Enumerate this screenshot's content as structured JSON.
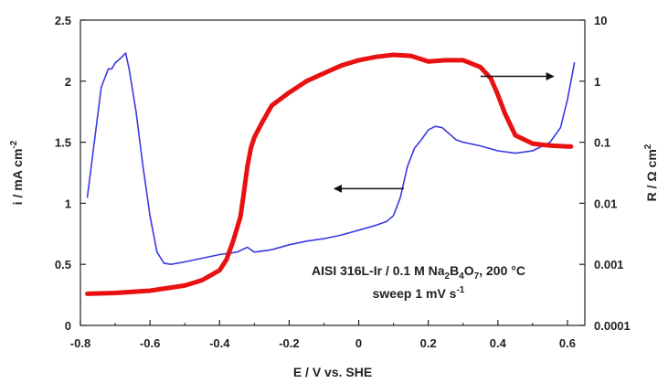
{
  "chart_data": {
    "type": "line",
    "xlabel": "E / V vs. SHE",
    "ylabel_left_parts": [
      "i / mA cm",
      "-2"
    ],
    "ylabel_right_parts": [
      "R / Ω cm",
      "2"
    ],
    "xlim": [
      -0.8,
      0.65
    ],
    "ylim_left": [
      0,
      2.5
    ],
    "ylim_right": [
      0.0001,
      10
    ],
    "right_axis_scale": "log",
    "x_ticks": [
      -0.8,
      -0.6,
      -0.4,
      -0.2,
      0,
      0.2,
      0.4,
      0.6
    ],
    "x_tick_labels": [
      "-0.8",
      "-0.6",
      "-0.4",
      "-0.2",
      "0",
      "0.2",
      "0.4",
      "0.6"
    ],
    "y_left_ticks": [
      0,
      0.5,
      1,
      1.5,
      2,
      2.5
    ],
    "y_left_tick_labels": [
      "0",
      "0.5",
      "1",
      "1.5",
      "2",
      "2.5"
    ],
    "y_right_ticks": [
      0.0001,
      0.001,
      0.01,
      0.1,
      1,
      10
    ],
    "y_right_tick_labels": [
      "0.0001",
      "0.001",
      "0.01",
      "0.1",
      "1",
      "10"
    ],
    "annotation_line1": [
      "AISI 316L-Ir / 0.1 M Na",
      "2",
      "B",
      "4",
      "O",
      "7",
      ", 200 °C"
    ],
    "annotation_line2": [
      "sweep 1 mV s",
      "-1"
    ],
    "series": [
      {
        "axis": "left",
        "color": "#3a3ae0",
        "points": [
          [
            -0.78,
            1.05
          ],
          [
            -0.76,
            1.5
          ],
          [
            -0.74,
            1.95
          ],
          [
            -0.72,
            2.1
          ],
          [
            -0.71,
            2.1
          ],
          [
            -0.7,
            2.15
          ],
          [
            -0.68,
            2.2
          ],
          [
            -0.67,
            2.23
          ],
          [
            -0.66,
            2.1
          ],
          [
            -0.64,
            1.75
          ],
          [
            -0.62,
            1.3
          ],
          [
            -0.6,
            0.9
          ],
          [
            -0.58,
            0.6
          ],
          [
            -0.56,
            0.51
          ],
          [
            -0.54,
            0.5
          ],
          [
            -0.5,
            0.52
          ],
          [
            -0.45,
            0.55
          ],
          [
            -0.4,
            0.58
          ],
          [
            -0.35,
            0.6
          ],
          [
            -0.32,
            0.64
          ],
          [
            -0.3,
            0.6
          ],
          [
            -0.25,
            0.62
          ],
          [
            -0.2,
            0.66
          ],
          [
            -0.15,
            0.69
          ],
          [
            -0.1,
            0.71
          ],
          [
            -0.05,
            0.74
          ],
          [
            0.0,
            0.78
          ],
          [
            0.05,
            0.82
          ],
          [
            0.08,
            0.85
          ],
          [
            0.1,
            0.9
          ],
          [
            0.12,
            1.05
          ],
          [
            0.14,
            1.3
          ],
          [
            0.16,
            1.45
          ],
          [
            0.18,
            1.52
          ],
          [
            0.2,
            1.6
          ],
          [
            0.22,
            1.63
          ],
          [
            0.24,
            1.62
          ],
          [
            0.26,
            1.57
          ],
          [
            0.28,
            1.52
          ],
          [
            0.3,
            1.5
          ],
          [
            0.35,
            1.47
          ],
          [
            0.4,
            1.43
          ],
          [
            0.45,
            1.41
          ],
          [
            0.5,
            1.43
          ],
          [
            0.55,
            1.5
          ],
          [
            0.58,
            1.62
          ],
          [
            0.6,
            1.85
          ],
          [
            0.61,
            2.0
          ],
          [
            0.62,
            2.15
          ]
        ]
      },
      {
        "axis": "right",
        "color": "#e81010",
        "points": [
          [
            -0.78,
            0.00033
          ],
          [
            -0.7,
            0.00034
          ],
          [
            -0.6,
            0.00037
          ],
          [
            -0.5,
            0.00045
          ],
          [
            -0.45,
            0.00055
          ],
          [
            -0.4,
            0.0008
          ],
          [
            -0.38,
            0.0012
          ],
          [
            -0.36,
            0.0025
          ],
          [
            -0.34,
            0.006
          ],
          [
            -0.33,
            0.015
          ],
          [
            -0.32,
            0.04
          ],
          [
            -0.31,
            0.08
          ],
          [
            -0.3,
            0.12
          ],
          [
            -0.28,
            0.2
          ],
          [
            -0.25,
            0.4
          ],
          [
            -0.2,
            0.65
          ],
          [
            -0.15,
            1.0
          ],
          [
            -0.1,
            1.35
          ],
          [
            -0.05,
            1.8
          ],
          [
            0.0,
            2.2
          ],
          [
            0.05,
            2.5
          ],
          [
            0.1,
            2.7
          ],
          [
            0.15,
            2.6
          ],
          [
            0.2,
            2.1
          ],
          [
            0.25,
            2.2
          ],
          [
            0.3,
            2.2
          ],
          [
            0.35,
            1.7
          ],
          [
            0.38,
            1.1
          ],
          [
            0.4,
            0.6
          ],
          [
            0.42,
            0.3
          ],
          [
            0.45,
            0.13
          ],
          [
            0.5,
            0.095
          ],
          [
            0.55,
            0.088
          ],
          [
            0.6,
            0.085
          ],
          [
            0.61,
            0.085
          ]
        ]
      }
    ],
    "arrows": [
      {
        "from": [
          0.35,
          1.2
        ],
        "to": [
          0.56,
          1.2
        ],
        "axis": "right"
      },
      {
        "from": [
          0.13,
          1.12
        ],
        "to": [
          -0.07,
          1.12
        ],
        "axis": "left"
      }
    ]
  }
}
